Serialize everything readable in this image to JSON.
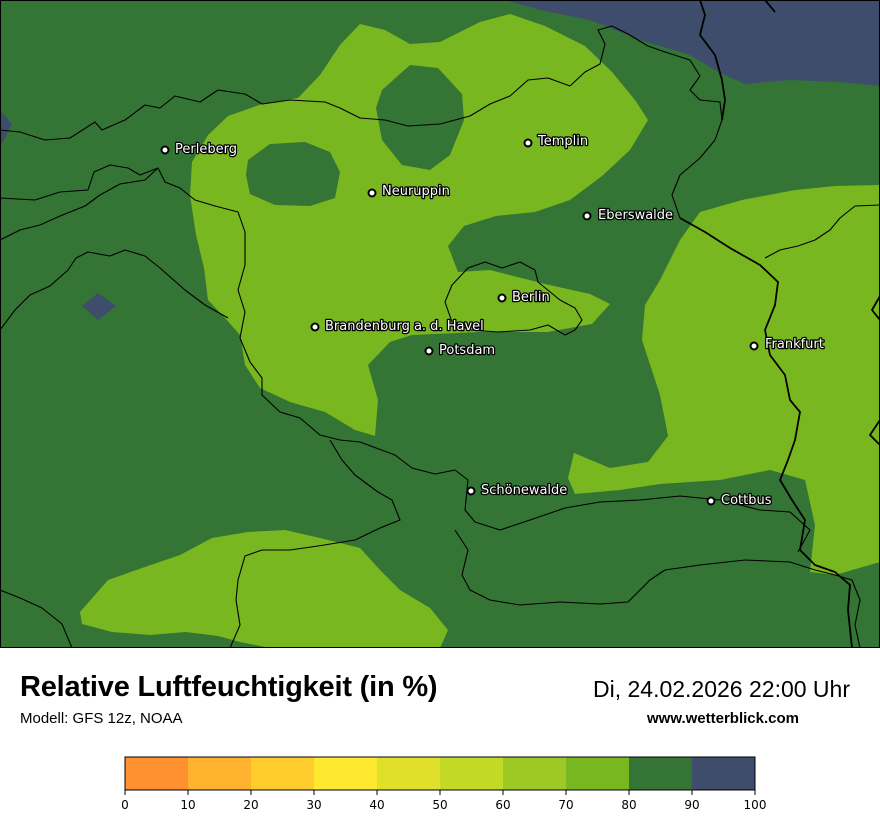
{
  "title": "Relative Luftfeuchtigkeit (in %)",
  "model": "Modell: GFS 12z, NOAA",
  "datetime": "Di, 24.02.2026 22:00 Uhr",
  "website": "www.wetterblick.com",
  "colors": {
    "band_70_80": "#78b71f",
    "band_80_90": "#347434",
    "band_90_100": "#3e4d6b"
  },
  "cities": [
    {
      "name": "Perleberg"
    },
    {
      "name": "Templin"
    },
    {
      "name": "Neuruppin"
    },
    {
      "name": "Eberswalde"
    },
    {
      "name": "Berlin"
    },
    {
      "name": "Brandenburg a. d. Havel"
    },
    {
      "name": "Potsdam"
    },
    {
      "name": "Frankfurt"
    },
    {
      "name": "Schönewalde"
    },
    {
      "name": "Cottbus"
    }
  ],
  "legend": {
    "ticks": [
      "0",
      "10",
      "20",
      "30",
      "40",
      "50",
      "60",
      "70",
      "80",
      "90",
      "100"
    ],
    "colors": [
      "#ff9130",
      "#ffb22e",
      "#ffcc2b",
      "#ffe830",
      "#e0e02a",
      "#c2d926",
      "#9ec823",
      "#78b71f",
      "#347434",
      "#3e4d6b"
    ]
  }
}
